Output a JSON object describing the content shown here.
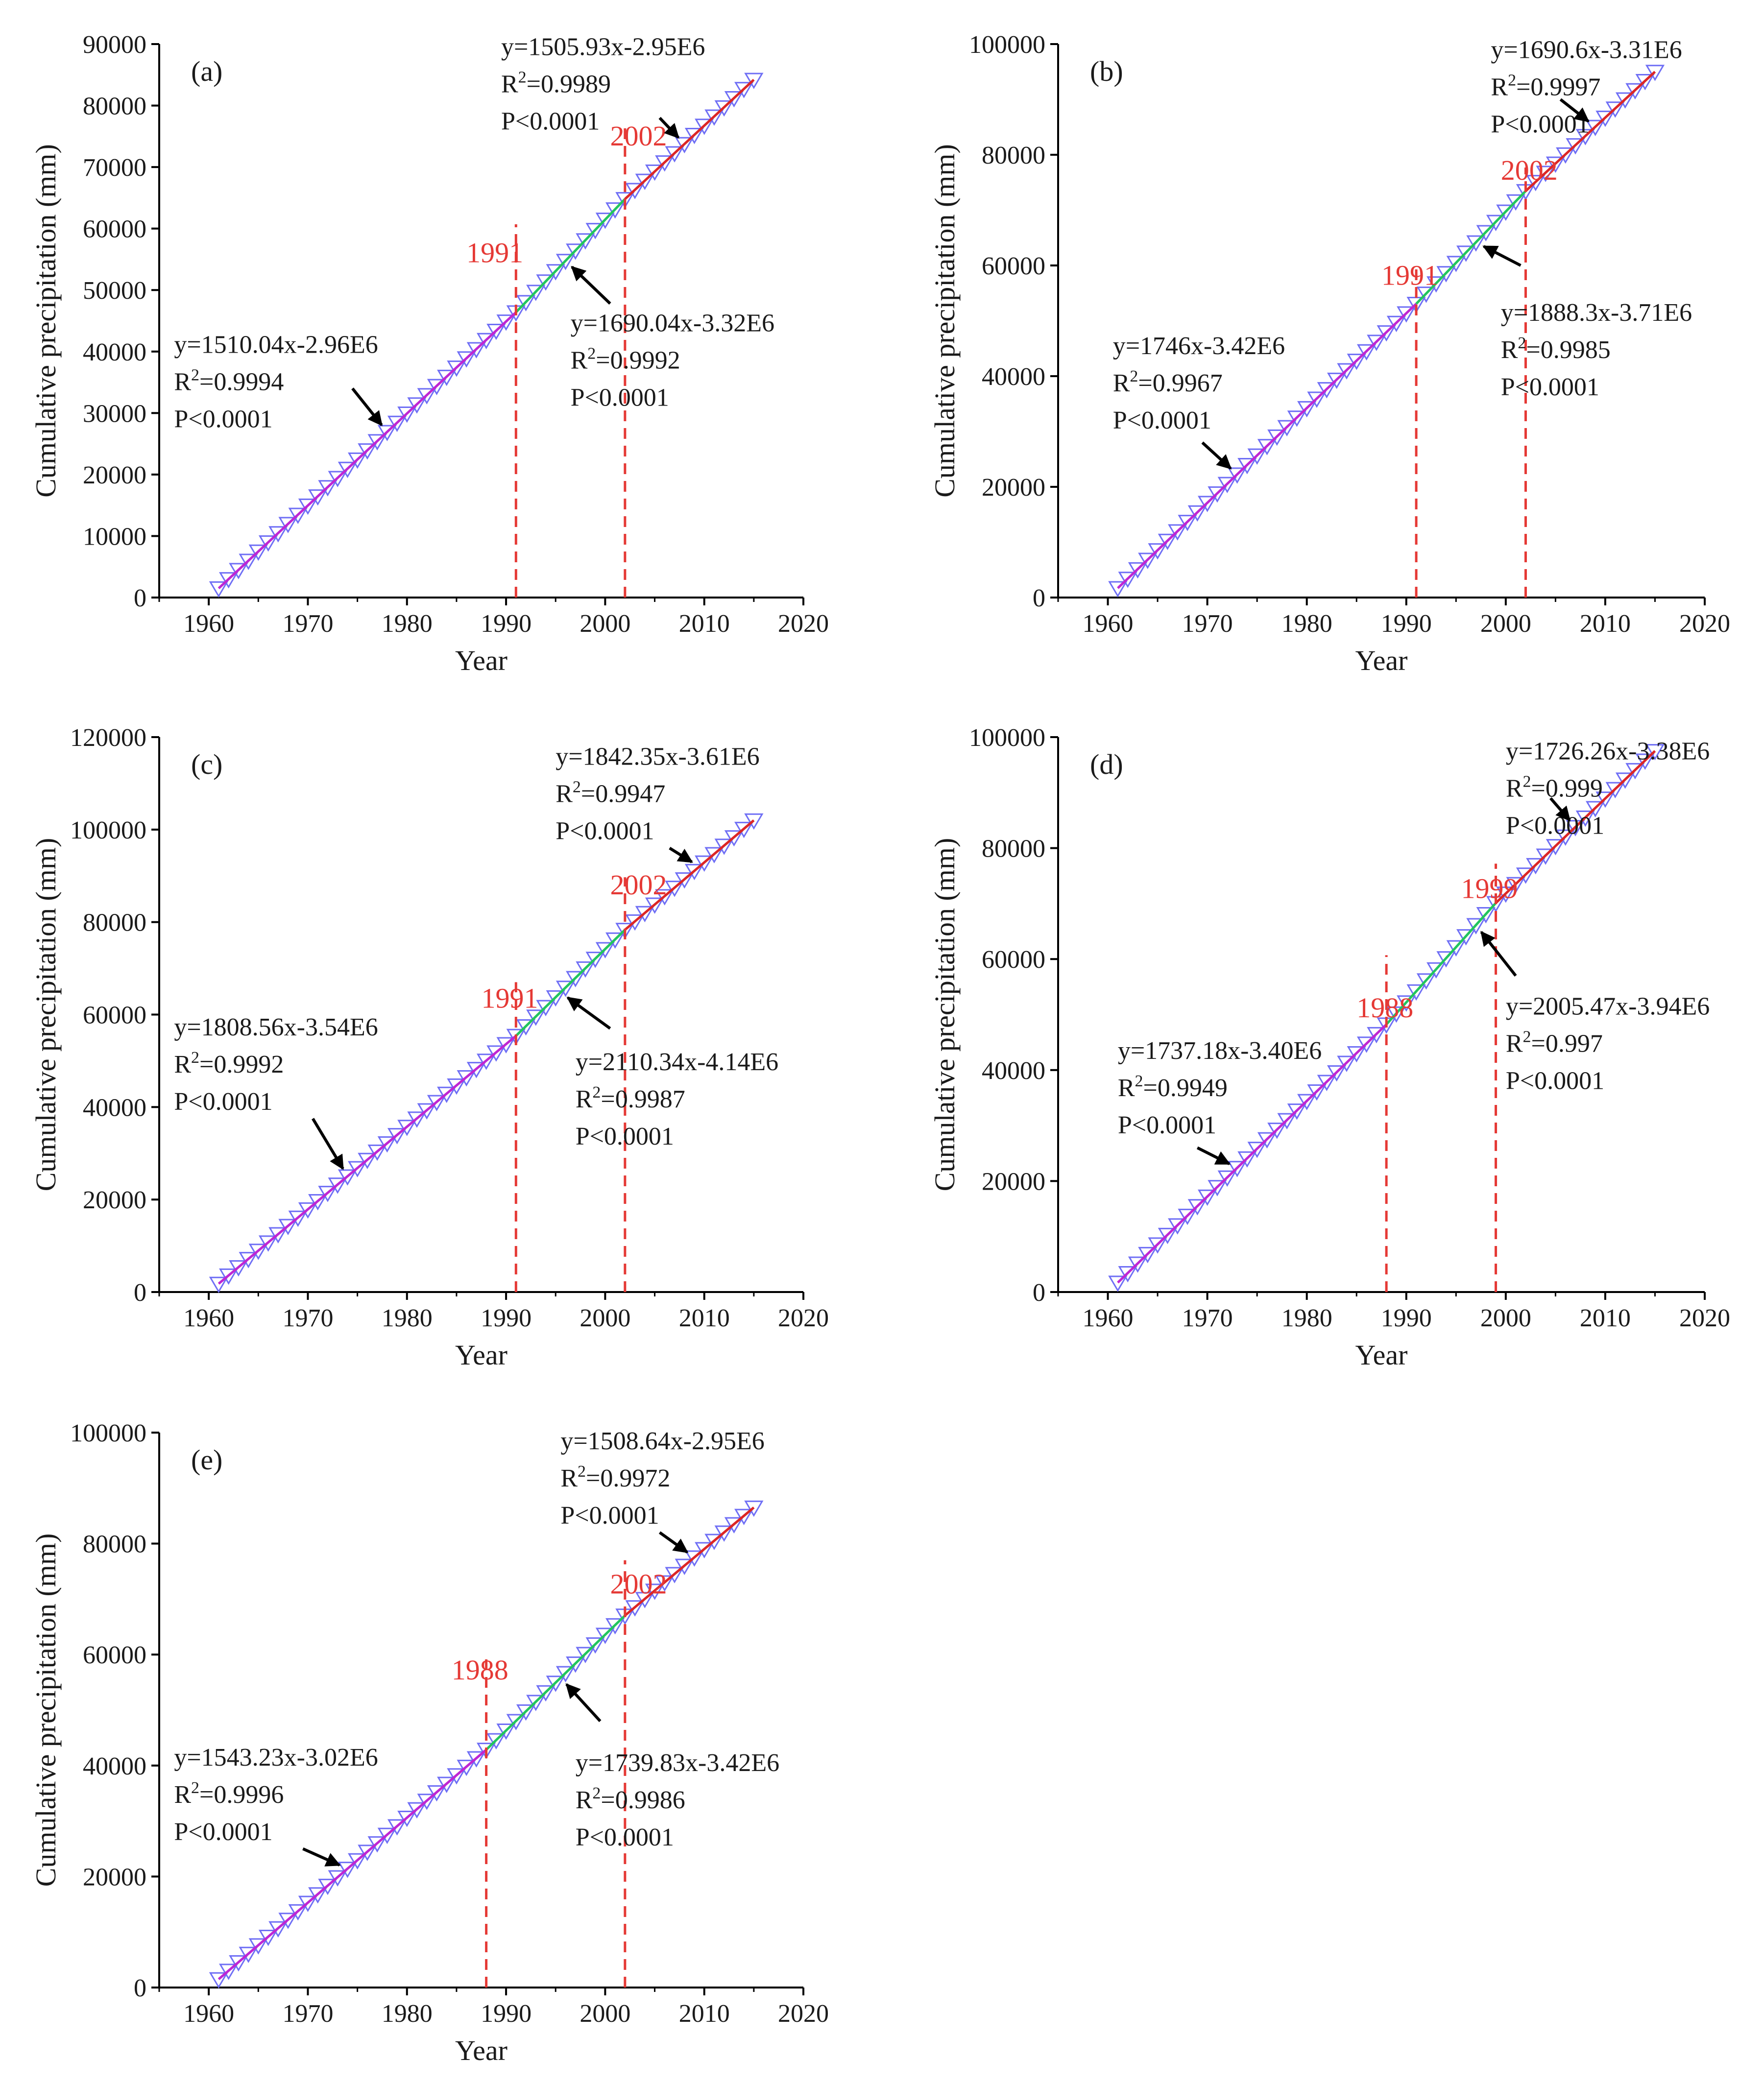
{
  "colors": {
    "axis": "#000000",
    "marker": "#6f6ff5",
    "seg1": "#c026d3",
    "seg2": "#22c55e",
    "seg3": "#dc2626",
    "breakline": "#e53935",
    "breaktext": "#e53935",
    "text": "#1a1a1a"
  },
  "chart_data": [
    {
      "type": "line",
      "panel": "(a)",
      "xlabel": "Year",
      "ylabel": "Cumulative  precipitation (mm)",
      "xlim": [
        1955,
        2020
      ],
      "ylim": [
        0,
        90000
      ],
      "xticks": [
        1960,
        1970,
        1980,
        1990,
        2000,
        2010,
        2020
      ],
      "yticks": [
        0,
        10000,
        20000,
        30000,
        40000,
        50000,
        60000,
        70000,
        80000,
        90000
      ],
      "x": [
        1961,
        2015
      ],
      "breaks": [
        1991,
        2002
      ],
      "break_labels": [
        "1991",
        "2002"
      ],
      "series": [
        {
          "name": "Cumulative precipitation",
          "marker": "down-triangle",
          "x_range": [
            1961,
            2015
          ],
          "endpoints": [
            1500,
            84200
          ]
        },
        {
          "name": "Segment 1 fit",
          "range": [
            1961,
            1991
          ],
          "slope": 1510.04,
          "intercept_label": "-2.96E6",
          "equation": "y=1510.04x-2.96E6",
          "r2": "0.9994",
          "p": "P<0.0001"
        },
        {
          "name": "Segment 2 fit",
          "range": [
            1991,
            2002
          ],
          "slope": 1690.04,
          "intercept_label": "-3.32E6",
          "equation": "y=1690.04x-3.32E6",
          "r2": "0.9992",
          "p": "P<0.0001"
        },
        {
          "name": "Segment 3 fit",
          "range": [
            2002,
            2015
          ],
          "slope": 1505.93,
          "intercept_label": "-2.95E6",
          "equation": "y=1505.93x-2.95E6",
          "r2": "0.9989",
          "p": "P<0.0001"
        }
      ]
    },
    {
      "type": "line",
      "panel": "(b)",
      "xlabel": "Year",
      "ylabel": "Cumulative  precipitation (mm)",
      "xlim": [
        1955,
        2020
      ],
      "ylim": [
        0,
        100000
      ],
      "xticks": [
        1960,
        1970,
        1980,
        1990,
        2000,
        2010,
        2020
      ],
      "yticks": [
        0,
        20000,
        40000,
        60000,
        80000,
        100000
      ],
      "x": [
        1961,
        2015
      ],
      "breaks": [
        1991,
        2002
      ],
      "break_labels": [
        "1991",
        "2002"
      ],
      "series": [
        {
          "name": "Cumulative precipitation",
          "marker": "down-triangle",
          "x_range": [
            1961,
            2015
          ],
          "endpoints": [
            1700,
            95000
          ]
        },
        {
          "name": "Segment 1 fit",
          "range": [
            1961,
            1991
          ],
          "slope": 1746,
          "intercept_label": "-3.42E6",
          "equation": "y=1746x-3.42E6",
          "r2": "0.9967",
          "p": "P<0.0001"
        },
        {
          "name": "Segment 2 fit",
          "range": [
            1991,
            2002
          ],
          "slope": 1888.3,
          "intercept_label": "-3.71E6",
          "equation": "y=1888.3x-3.71E6",
          "r2": "0.9985",
          "p": "P<0.0001"
        },
        {
          "name": "Segment 3 fit",
          "range": [
            2002,
            2015
          ],
          "slope": 1690.6,
          "intercept_label": "-3.31E6",
          "equation": "y=1690.6x-3.31E6",
          "r2": "0.9997",
          "p": "P<0.0001"
        }
      ]
    },
    {
      "type": "line",
      "panel": "(c)",
      "xlabel": "Year",
      "ylabel": "Cumulative  precipitation (mm)",
      "xlim": [
        1955,
        2020
      ],
      "ylim": [
        0,
        120000
      ],
      "xticks": [
        1960,
        1970,
        1980,
        1990,
        2000,
        2010,
        2020
      ],
      "yticks": [
        0,
        20000,
        40000,
        60000,
        80000,
        100000,
        120000
      ],
      "x": [
        1961,
        2015
      ],
      "breaks": [
        1991,
        2002
      ],
      "break_labels": [
        "1991",
        "2002"
      ],
      "series": [
        {
          "name": "Cumulative precipitation",
          "marker": "down-triangle",
          "x_range": [
            1961,
            2015
          ],
          "endpoints": [
            1800,
            102000
          ]
        },
        {
          "name": "Segment 1 fit",
          "range": [
            1961,
            1991
          ],
          "slope": 1808.56,
          "intercept_label": "-3.54E6",
          "equation": "y=1808.56x-3.54E6",
          "r2": "0.9992",
          "p": "P<0.0001"
        },
        {
          "name": "Segment 2 fit",
          "range": [
            1991,
            2002
          ],
          "slope": 2110.34,
          "intercept_label": "-4.14E6",
          "equation": "y=2110.34x-4.14E6",
          "r2": "0.9987",
          "p": "P<0.0001"
        },
        {
          "name": "Segment 3 fit",
          "range": [
            2002,
            2015
          ],
          "slope": 1842.35,
          "intercept_label": "-3.61E6",
          "equation": "y=1842.35x-3.61E6",
          "r2": "0.9947",
          "p": "P<0.0001"
        }
      ]
    },
    {
      "type": "line",
      "panel": "(d)",
      "xlabel": "Year",
      "ylabel": "Cumulative  precipitation (mm)",
      "xlim": [
        1955,
        2020
      ],
      "ylim": [
        0,
        100000
      ],
      "xticks": [
        1960,
        1970,
        1980,
        1990,
        2000,
        2010,
        2020
      ],
      "yticks": [
        0,
        20000,
        40000,
        60000,
        80000,
        100000
      ],
      "x": [
        1961,
        2015
      ],
      "breaks": [
        1988,
        1999
      ],
      "break_labels": [
        "1988",
        "1999"
      ],
      "series": [
        {
          "name": "Cumulative precipitation",
          "marker": "down-triangle",
          "x_range": [
            1961,
            2015
          ],
          "endpoints": [
            1700,
            97500
          ]
        },
        {
          "name": "Segment 1 fit",
          "range": [
            1961,
            1988
          ],
          "slope": 1737.18,
          "intercept_label": "-3.40E6",
          "equation": "y=1737.18x-3.40E6",
          "r2": "0.9949",
          "p": "P<0.0001"
        },
        {
          "name": "Segment 2 fit",
          "range": [
            1988,
            1999
          ],
          "slope": 2005.47,
          "intercept_label": "-3.94E6",
          "equation": "y=2005.47x-3.94E6",
          "r2": "0.997",
          "p": "P<0.0001"
        },
        {
          "name": "Segment 3 fit",
          "range": [
            1999,
            2015
          ],
          "slope": 1726.26,
          "intercept_label": "-3.38E6",
          "equation": "y=1726.26x-3.38E6",
          "r2": "0.999",
          "p": "P<0.0001"
        }
      ]
    },
    {
      "type": "line",
      "panel": "(e)",
      "xlabel": "Year",
      "ylabel": "Cumulative  precipitation (mm)",
      "xlim": [
        1955,
        2020
      ],
      "ylim": [
        0,
        100000
      ],
      "xticks": [
        1960,
        1970,
        1980,
        1990,
        2000,
        2010,
        2020
      ],
      "yticks": [
        0,
        20000,
        40000,
        60000,
        80000,
        100000
      ],
      "x": [
        1961,
        2015
      ],
      "breaks": [
        1988,
        2002
      ],
      "break_labels": [
        "1988",
        "2002"
      ],
      "series": [
        {
          "name": "Cumulative precipitation",
          "marker": "down-triangle",
          "x_range": [
            1961,
            2015
          ],
          "endpoints": [
            1500,
            86500
          ]
        },
        {
          "name": "Segment 1 fit",
          "range": [
            1961,
            1988
          ],
          "slope": 1543.23,
          "intercept_label": "-3.02E6",
          "equation": "y=1543.23x-3.02E6",
          "r2": "0.9996",
          "p": "P<0.0001"
        },
        {
          "name": "Segment 2 fit",
          "range": [
            1988,
            2002
          ],
          "slope": 1739.83,
          "intercept_label": "-3.42E6",
          "equation": "y=1739.83x-3.42E6",
          "r2": "0.9986",
          "p": "P<0.0001"
        },
        {
          "name": "Segment 3 fit",
          "range": [
            2002,
            2015
          ],
          "slope": 1508.64,
          "intercept_label": "-2.95E6",
          "equation": "y=1508.64x-2.95E6",
          "r2": "0.9972",
          "p": "P<0.0001"
        }
      ]
    }
  ]
}
